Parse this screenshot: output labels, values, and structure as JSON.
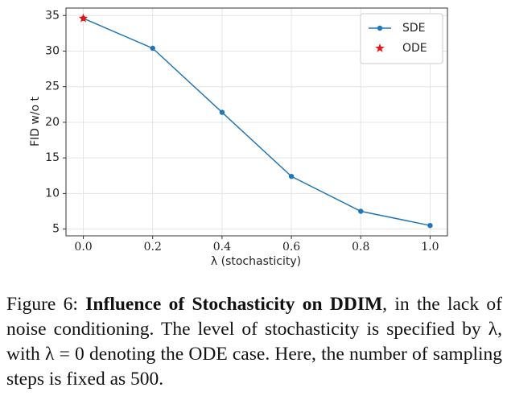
{
  "chart_data": {
    "type": "line",
    "xlabel": "λ (stochasticity)",
    "ylabel": "FID w/o t",
    "series": [
      {
        "name": "SDE",
        "color": "#1f77b4",
        "marker": "circle",
        "line": true,
        "x": [
          0.0,
          0.2,
          0.4,
          0.6,
          0.8,
          1.0
        ],
        "values": [
          34.6,
          30.4,
          21.4,
          12.4,
          7.5,
          5.5
        ]
      },
      {
        "name": "ODE",
        "color": "#ee1111",
        "marker": "star",
        "line": false,
        "x": [
          0.0
        ],
        "values": [
          34.6
        ]
      }
    ],
    "xlim": [
      -0.05,
      1.05
    ],
    "ylim": [
      4.05,
      36.05
    ],
    "xticks": [
      {
        "value": 0,
        "label": "0.0"
      },
      0.2,
      0.4,
      0.6,
      0.8,
      {
        "value": 1,
        "label": "1.0"
      }
    ],
    "yticks": [
      5,
      10,
      15,
      20,
      25,
      30,
      35
    ],
    "grid": true,
    "legend": "upper right"
  },
  "caption": {
    "label": "Figure 6:",
    "title": "Influence of Stochasticity on DDIM",
    "text": ", in the lack of noise conditioning. The level of stochasticity is specified by λ, with λ = 0 denoting the ODE case. Here, the number of sampling steps is fixed as 500."
  }
}
